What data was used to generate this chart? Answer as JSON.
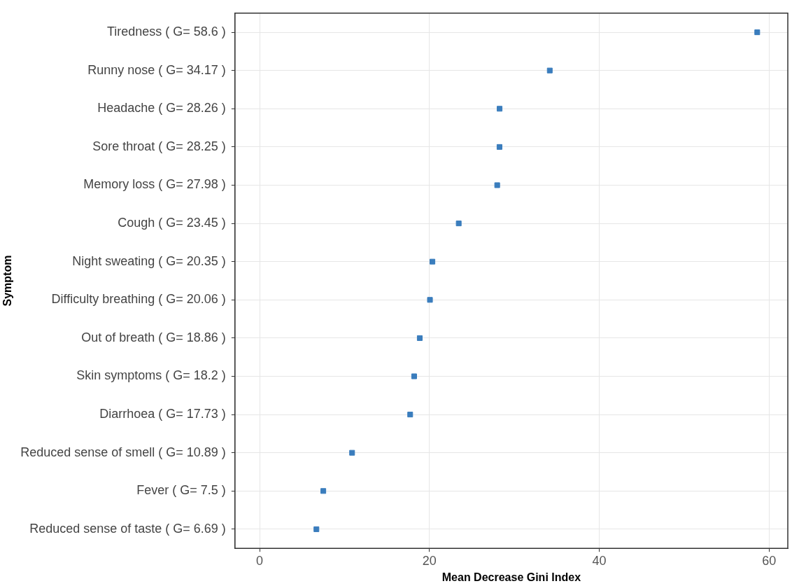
{
  "chart_data": {
    "type": "scatter",
    "orientation": "horizontal",
    "xlabel": "Mean Decrease Gini Index",
    "ylabel": "Symptom",
    "categories": [
      "Tiredness ( G= 58.6 )",
      "Runny nose ( G= 34.17 )",
      "Headache ( G= 28.26 )",
      "Sore throat ( G= 28.25 )",
      "Memory loss ( G= 27.98 )",
      "Cough ( G= 23.45 )",
      "Night sweating ( G= 20.35 )",
      "Difficulty breathing ( G= 20.06 )",
      "Out of breath ( G= 18.86 )",
      "Skin symptoms ( G= 18.2 )",
      "Diarrhoea ( G= 17.73 )",
      "Reduced sense of smell ( G= 10.89 )",
      "Fever ( G= 7.5 )",
      "Reduced sense of taste ( G= 6.69 )"
    ],
    "values": [
      58.6,
      34.17,
      28.26,
      28.25,
      27.98,
      23.45,
      20.35,
      20.06,
      18.86,
      18.2,
      17.73,
      10.89,
      7.5,
      6.69
    ],
    "color": "#3a7dbd",
    "marker": "square",
    "xlim": [
      -2.9,
      62.2
    ],
    "xticks": [
      0,
      20,
      40,
      60
    ],
    "grid": true,
    "legend": false
  }
}
